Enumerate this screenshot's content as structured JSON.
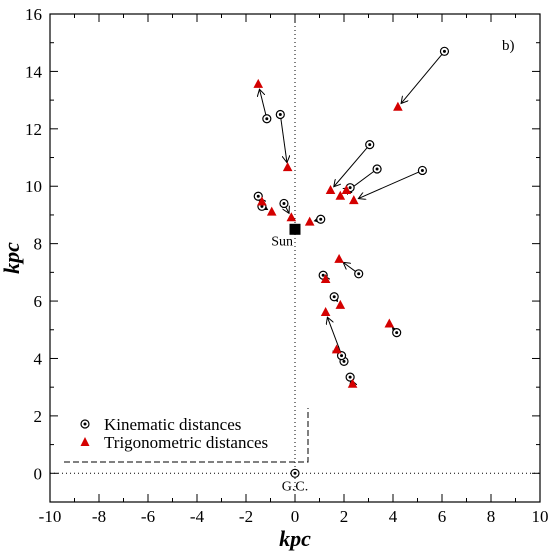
{
  "chart_data": {
    "type": "scatter",
    "panel_label": "b)",
    "xlabel": "kpc",
    "ylabel": "kpc",
    "xlim": [
      -10,
      10
    ],
    "ylim": [
      -1,
      16
    ],
    "x_ticks": [
      -10,
      -8,
      -6,
      -4,
      -2,
      0,
      2,
      4,
      6,
      8,
      10
    ],
    "y_ticks": [
      0,
      2,
      4,
      6,
      8,
      10,
      12,
      14,
      16
    ],
    "grid": false,
    "legend_position": "bottom-left",
    "legend": {
      "kinematic": "Kinematic distances",
      "trigonometric": "Trigonometric distances"
    },
    "annotations": {
      "sun": "Sun",
      "gc": "G.C."
    },
    "sun_position": [
      0,
      8.5
    ],
    "gc_position": [
      0,
      0
    ],
    "pairs": [
      {
        "kin": [
          6.1,
          14.7
        ],
        "trig": [
          4.2,
          12.75
        ]
      },
      {
        "kin": [
          -1.15,
          12.35
        ],
        "trig": [
          -1.5,
          13.55
        ]
      },
      {
        "kin": [
          -0.6,
          12.5
        ],
        "trig": [
          -0.3,
          10.65
        ]
      },
      {
        "kin": [
          3.05,
          11.45
        ],
        "trig": [
          1.45,
          9.85
        ]
      },
      {
        "kin": [
          3.35,
          10.6
        ],
        "trig": [
          1.85,
          9.65
        ]
      },
      {
        "kin": [
          5.2,
          10.55
        ],
        "trig": [
          2.4,
          9.5
        ]
      },
      {
        "kin": [
          2.25,
          9.95
        ],
        "trig": [
          2.1,
          9.85
        ]
      },
      {
        "kin": [
          -1.5,
          9.65
        ],
        "trig": [
          -1.35,
          9.45
        ]
      },
      {
        "kin": [
          -1.35,
          9.3
        ],
        "trig": [
          -0.95,
          9.1
        ]
      },
      {
        "kin": [
          -0.45,
          9.4
        ],
        "trig": [
          -0.15,
          8.9
        ]
      },
      {
        "kin": [
          1.05,
          8.85
        ],
        "trig": [
          0.6,
          8.75
        ]
      },
      {
        "kin": [
          2.6,
          6.95
        ],
        "trig": [
          1.8,
          7.45
        ]
      },
      {
        "kin": [
          1.15,
          6.9
        ],
        "trig": [
          1.25,
          6.75
        ]
      },
      {
        "kin": [
          1.6,
          6.15
        ],
        "trig": [
          1.85,
          5.85
        ]
      },
      {
        "kin": [
          4.15,
          4.9
        ],
        "trig": [
          3.85,
          5.2
        ]
      },
      {
        "kin": [
          2.0,
          3.9
        ],
        "trig": [
          1.25,
          5.6
        ]
      },
      {
        "kin": [
          1.9,
          4.1
        ],
        "trig": [
          1.7,
          4.3
        ]
      },
      {
        "kin": [
          2.25,
          3.35
        ],
        "trig": [
          2.35,
          3.1
        ]
      }
    ]
  }
}
